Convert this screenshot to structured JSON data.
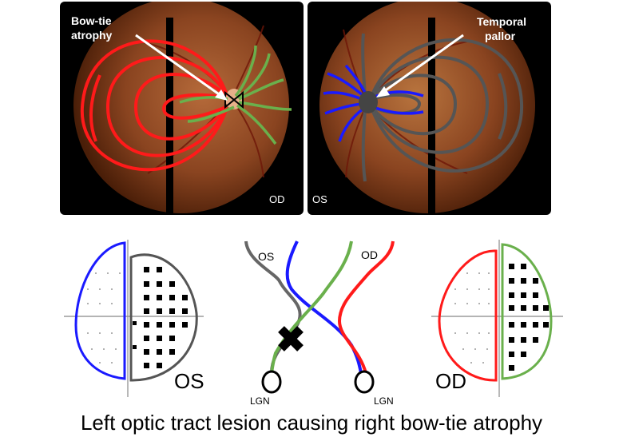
{
  "fundus_od": {
    "annotation_line1": "Bow-tie",
    "annotation_line2": "atrophy",
    "eye_label": "OD"
  },
  "fundus_os": {
    "annotation_line1": "Temporal",
    "annotation_line2": "pallor",
    "eye_label": "OS"
  },
  "visual_field_left": {
    "label": "OS"
  },
  "visual_field_right": {
    "label": "OD"
  },
  "pathway": {
    "os_label": "OS",
    "od_label": "OD",
    "lgn_left": "LGN",
    "lgn_right": "LGN"
  },
  "caption": "Left optic tract lesion causing right bow-tie atrophy",
  "colors": {
    "red": "#ff1a1a",
    "green": "#6ab04c",
    "blue": "#1a1aff",
    "gray": "#555555",
    "fundus": "#7a3a16"
  }
}
